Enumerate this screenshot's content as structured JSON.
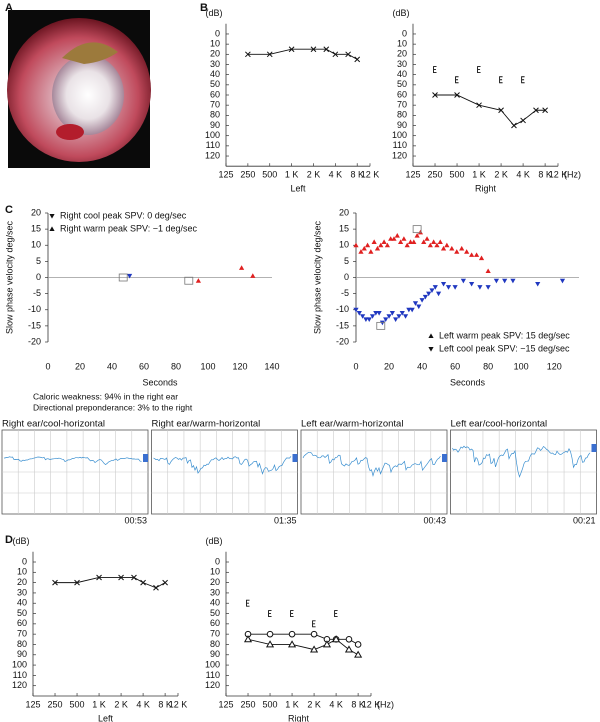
{
  "letters": [
    "A",
    "B",
    "C",
    "D"
  ],
  "notes": [
    "Caloric weakness: 94% in the right ear",
    "Directional preponderance: 3% to the right"
  ],
  "tracings": [
    {
      "title": "Right ear/cool-horizontal",
      "time": "00:53"
    },
    {
      "title": "Right ear/warm-horizontal",
      "time": "01:35"
    },
    {
      "title": "Left ear/warm-horizontal",
      "time": "00:43"
    },
    {
      "title": "Left ear/cool-horizontal",
      "time": "00:21"
    }
  ],
  "chart_data": [
    {
      "type": "audiogram",
      "ylabel": "(dB)",
      "xlabel": "Left",
      "xlog": true,
      "yinvert": true,
      "xlim": [
        125,
        12000
      ],
      "ylim": [
        -10,
        130
      ],
      "xticks": [
        125,
        250,
        500,
        {
          "value": 1000,
          "label": "1 K"
        },
        {
          "value": 2000,
          "label": "2 K"
        },
        {
          "value": 4000,
          "label": "4 K"
        },
        {
          "value": 8000,
          "label": "8 K"
        },
        {
          "value": 12000,
          "label": "12 K"
        }
      ],
      "yticks": [
        0,
        10,
        20,
        30,
        40,
        50,
        60,
        70,
        80,
        90,
        100,
        110,
        120
      ],
      "series": [
        {
          "marker": "x",
          "line": true,
          "color": "#111111",
          "x": [
            250,
            500,
            1000,
            2000,
            3000,
            4000,
            6000,
            8000
          ],
          "values": [
            20,
            20,
            15,
            15,
            15,
            20,
            20,
            25
          ]
        }
      ]
    },
    {
      "type": "audiogram",
      "ylabel": "(dB)",
      "xlabel": "Right",
      "xunit": "(Hz)",
      "xlog": true,
      "yinvert": true,
      "xlim": [
        125,
        12000
      ],
      "ylim": [
        -10,
        130
      ],
      "xticks": [
        125,
        250,
        500,
        {
          "value": 1000,
          "label": "1 K"
        },
        {
          "value": 2000,
          "label": "2 K"
        },
        {
          "value": 4000,
          "label": "4 K"
        },
        {
          "value": 8000,
          "label": "8 K"
        },
        {
          "value": 12000,
          "label": "12 K"
        }
      ],
      "yticks": [
        0,
        10,
        20,
        30,
        40,
        50,
        60,
        70,
        80,
        90,
        100,
        110,
        120
      ],
      "series": [
        {
          "marker": "x",
          "line": true,
          "color": "#111111",
          "x": [
            250,
            500,
            1000,
            2000,
            3000,
            4000,
            6000,
            8000
          ],
          "values": [
            60,
            60,
            70,
            75,
            90,
            85,
            75,
            75
          ]
        },
        {
          "marker": "bracket",
          "line": false,
          "color": "#111111",
          "x": [
            250,
            500,
            1000,
            2000,
            4000
          ],
          "values": [
            35,
            45,
            35,
            45,
            45
          ]
        }
      ]
    },
    {
      "type": "scatter",
      "ylabel": "Slow phase velocity deg/sec",
      "xlabel": "Seconds",
      "xlim": [
        0,
        140
      ],
      "ylim": [
        -20,
        20
      ],
      "xticks": [
        0,
        20,
        40,
        60,
        80,
        100,
        120,
        140
      ],
      "yticks": [
        -20,
        -15,
        -10,
        -5,
        0,
        5,
        10,
        15,
        20
      ],
      "legend": "top-left",
      "series": [
        {
          "name": "Right cool peak SPV: 0 deg/sec",
          "marker": "down",
          "color": "#2038c0",
          "x": [
            51
          ],
          "values": [
            0.5
          ]
        },
        {
          "name": "Right warm peak SPV: −1 deg/sec",
          "marker": "up",
          "color": "#e02020",
          "x": [
            94,
            121,
            128
          ],
          "values": [
            -1,
            3,
            0.5
          ]
        }
      ],
      "peaks": {
        "x": [
          47,
          88
        ],
        "values": [
          0,
          -1
        ]
      }
    },
    {
      "type": "scatter",
      "ylabel": "Slow phase velocity deg/sec",
      "xlabel": "Seconds",
      "xlim": [
        0,
        135
      ],
      "ylim": [
        -20,
        20
      ],
      "xticks": [
        0,
        20,
        40,
        60,
        80,
        100,
        120
      ],
      "yticks": [
        -20,
        -15,
        -10,
        -5,
        0,
        5,
        10,
        15,
        20
      ],
      "legend": "bottom-right",
      "series": [
        {
          "name": "Left warm peak SPV: 15 deg/sec",
          "marker": "up",
          "color": "#e02020",
          "x": [
            0,
            3,
            5,
            7,
            9,
            11,
            13,
            15,
            17,
            19,
            21,
            23,
            25,
            27,
            29,
            31,
            33,
            35,
            37,
            39,
            41,
            43,
            45,
            47,
            49,
            51,
            53,
            55,
            58,
            61,
            64,
            67,
            70,
            73,
            76,
            80
          ],
          "values": [
            10,
            8,
            9,
            10,
            8,
            11,
            9,
            10,
            11,
            10,
            12,
            12,
            13,
            11,
            12,
            10,
            11,
            11,
            13,
            14,
            11,
            12,
            10,
            11,
            10,
            11,
            9,
            10,
            9,
            8,
            9,
            8,
            7,
            7,
            6,
            2
          ]
        },
        {
          "name": "Left cool peak SPV: −15 deg/sec",
          "marker": "down",
          "color": "#2038c0",
          "x": [
            0,
            2,
            4,
            6,
            8,
            10,
            12,
            14,
            16,
            18,
            20,
            22,
            24,
            26,
            28,
            30,
            32,
            34,
            36,
            38,
            40,
            42,
            44,
            46,
            48,
            50,
            53,
            56,
            60,
            65,
            70,
            75,
            80,
            85,
            90,
            95,
            110,
            125
          ],
          "values": [
            -10,
            -11,
            -12,
            -13,
            -13,
            -12,
            -11,
            -11,
            -14,
            -13,
            -12,
            -11,
            -13,
            -12,
            -11,
            -12,
            -10,
            -10,
            -8,
            -9,
            -7,
            -6,
            -5,
            -4,
            -3,
            -5,
            -2,
            -3,
            -3,
            -1,
            -2,
            -3,
            -3,
            -1,
            -1,
            -1,
            -2,
            -1
          ]
        }
      ],
      "peaks": {
        "x": [
          15,
          37
        ],
        "values": [
          -15,
          15
        ]
      }
    },
    {
      "type": "audiogram",
      "ylabel": "(dB)",
      "xlabel": "Left",
      "xlog": true,
      "yinvert": true,
      "xlim": [
        125,
        12000
      ],
      "ylim": [
        -10,
        130
      ],
      "xticks": [
        125,
        250,
        500,
        {
          "value": 1000,
          "label": "1 K"
        },
        {
          "value": 2000,
          "label": "2 K"
        },
        {
          "value": 4000,
          "label": "4 K"
        },
        {
          "value": 8000,
          "label": "8 K"
        },
        {
          "value": 12000,
          "label": "12 K"
        }
      ],
      "yticks": [
        0,
        10,
        20,
        30,
        40,
        50,
        60,
        70,
        80,
        90,
        100,
        110,
        120
      ],
      "series": [
        {
          "marker": "x",
          "line": true,
          "color": "#111111",
          "x": [
            250,
            500,
            1000,
            2000,
            3000,
            4000,
            6000,
            8000
          ],
          "values": [
            20,
            20,
            15,
            15,
            15,
            20,
            25,
            20
          ]
        }
      ]
    },
    {
      "type": "audiogram",
      "ylabel": "(dB)",
      "xlabel": "Right",
      "xunit": "(Hz)",
      "xlog": true,
      "yinvert": true,
      "xlim": [
        125,
        12000
      ],
      "ylim": [
        -10,
        130
      ],
      "xticks": [
        125,
        250,
        500,
        {
          "value": 1000,
          "label": "1 K"
        },
        {
          "value": 2000,
          "label": "2 K"
        },
        {
          "value": 4000,
          "label": "4 K"
        },
        {
          "value": 8000,
          "label": "8 K"
        },
        {
          "value": 12000,
          "label": "12 K"
        }
      ],
      "yticks": [
        0,
        10,
        20,
        30,
        40,
        50,
        60,
        70,
        80,
        90,
        100,
        110,
        120
      ],
      "series": [
        {
          "marker": "circle",
          "line": true,
          "color": "#111111",
          "x": [
            250,
            500,
            1000,
            2000,
            3000,
            4000,
            6000,
            8000
          ],
          "values": [
            70,
            70,
            70,
            70,
            75,
            75,
            75,
            80
          ]
        },
        {
          "marker": "open-up",
          "line": true,
          "color": "#111111",
          "x": [
            250,
            500,
            1000,
            2000,
            3000,
            4000,
            6000,
            8000
          ],
          "values": [
            75,
            80,
            80,
            85,
            80,
            75,
            85,
            90
          ]
        },
        {
          "marker": "bracket",
          "line": false,
          "color": "#111111",
          "x": [
            250,
            500,
            1000,
            2000,
            4000
          ],
          "values": [
            40,
            50,
            50,
            60,
            50
          ]
        }
      ]
    }
  ]
}
